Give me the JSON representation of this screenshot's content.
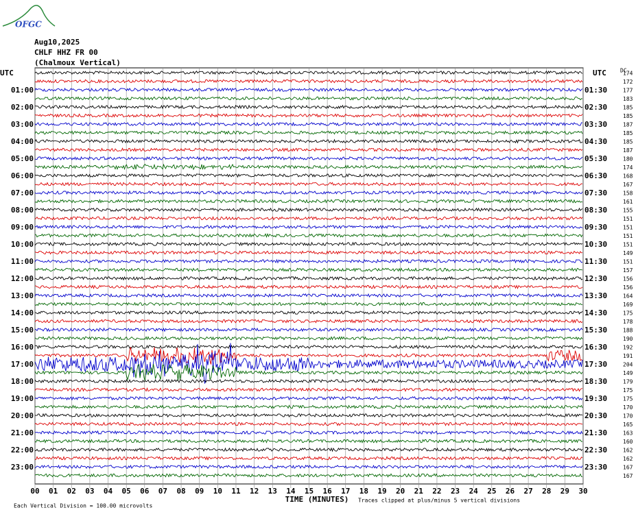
{
  "header": {
    "logo": "OFGC",
    "date": "Aug10,2025",
    "station": "CHLF HHZ FR 00",
    "location": "(Chalmoux Vertical)",
    "dc_label": "DC"
  },
  "left_labels": [
    "UTC",
    "01:00",
    "02:00",
    "03:00",
    "04:00",
    "05:00",
    "06:00",
    "07:00",
    "08:00",
    "09:00",
    "10:00",
    "11:00",
    "12:00",
    "13:00",
    "14:00",
    "15:00",
    "16:00",
    "17:00",
    "18:00",
    "19:00",
    "20:00",
    "21:00",
    "22:00",
    "23:00"
  ],
  "right_labels": [
    "UTC",
    "01:30",
    "02:30",
    "03:30",
    "04:30",
    "05:30",
    "06:30",
    "07:30",
    "08:30",
    "09:30",
    "10:30",
    "11:30",
    "12:30",
    "13:30",
    "14:30",
    "15:30",
    "16:30",
    "17:30",
    "18:30",
    "19:30",
    "20:30",
    "21:30",
    "22:30",
    "23:30"
  ],
  "dc_values": [
    "174",
    "172",
    "177",
    "183",
    "185",
    "185",
    "187",
    "185",
    "185",
    "187",
    "180",
    "174",
    "168",
    "167",
    "158",
    "161",
    "155",
    "151",
    "151",
    "151",
    "151",
    "149",
    "151",
    "157",
    "156",
    "156",
    "164",
    "169",
    "175",
    "178",
    "188",
    "190",
    "192",
    "191",
    "204",
    "149",
    "179",
    "175",
    "175",
    "170",
    "170",
    "165",
    "163",
    "160",
    "162",
    "162",
    "167",
    "167"
  ],
  "x_labels": [
    "00",
    "01",
    "02",
    "03",
    "04",
    "05",
    "06",
    "07",
    "08",
    "09",
    "10",
    "11",
    "12",
    "13",
    "14",
    "15",
    "16",
    "17",
    "18",
    "19",
    "20",
    "21",
    "22",
    "23",
    "24",
    "25",
    "26",
    "27",
    "28",
    "29",
    "30"
  ],
  "footer": {
    "scale": "Each Vertical Division =  100.00 microvolts",
    "axis_title": "TIME (MINUTES)",
    "clip_note": "Traces clipped at plus/minus 5 vertical divisions"
  }
}
